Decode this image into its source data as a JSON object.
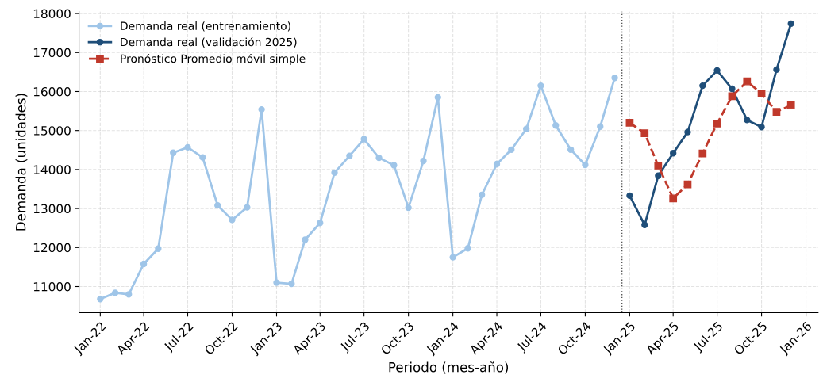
{
  "chart_data": {
    "type": "line",
    "xlabel": "Periodo (mes-año)",
    "ylabel": "Demanda (unidades)",
    "xlim": [
      "2021-11-18",
      "2026-01-26"
    ],
    "ylim": [
      10330,
      18050
    ],
    "xticks": [
      {
        "value": "2022-01-01",
        "label": "Jan-22"
      },
      {
        "value": "2022-04-01",
        "label": "Apr-22"
      },
      {
        "value": "2022-07-01",
        "label": "Jul-22"
      },
      {
        "value": "2022-10-01",
        "label": "Oct-22"
      },
      {
        "value": "2023-01-01",
        "label": "Jan-23"
      },
      {
        "value": "2023-04-01",
        "label": "Apr-23"
      },
      {
        "value": "2023-07-01",
        "label": "Jul-23"
      },
      {
        "value": "2023-10-01",
        "label": "Oct-23"
      },
      {
        "value": "2024-01-01",
        "label": "Jan-24"
      },
      {
        "value": "2024-04-01",
        "label": "Apr-24"
      },
      {
        "value": "2024-07-01",
        "label": "Jul-24"
      },
      {
        "value": "2024-10-01",
        "label": "Oct-24"
      },
      {
        "value": "2025-01-01",
        "label": "Jan-25"
      },
      {
        "value": "2025-04-01",
        "label": "Apr-25"
      },
      {
        "value": "2025-07-01",
        "label": "Jul-25"
      },
      {
        "value": "2025-10-01",
        "label": "Oct-25"
      },
      {
        "value": "2026-01-01",
        "label": "Jan-26"
      }
    ],
    "yticks": [
      11000,
      12000,
      13000,
      14000,
      15000,
      16000,
      17000,
      18000
    ],
    "grid": true,
    "legend": "top left",
    "ref_lines": [
      {
        "axis": "x",
        "value": "2024-12-16",
        "color": "#555555",
        "line_style": "dotted"
      }
    ],
    "series": [
      {
        "name": "Demanda real (entrenamiento)",
        "color": "#9fc5e8",
        "marker": "circle",
        "line_style": "solid",
        "x": [
          "2022-01",
          "2022-02",
          "2022-03",
          "2022-04",
          "2022-05",
          "2022-06",
          "2022-07",
          "2022-08",
          "2022-09",
          "2022-10",
          "2022-11",
          "2022-12",
          "2023-01",
          "2023-02",
          "2023-03",
          "2023-04",
          "2023-05",
          "2023-06",
          "2023-07",
          "2023-08",
          "2023-09",
          "2023-10",
          "2023-11",
          "2023-12",
          "2024-01",
          "2024-02",
          "2024-03",
          "2024-04",
          "2024-05",
          "2024-06",
          "2024-07",
          "2024-08",
          "2024-09",
          "2024-10",
          "2024-11",
          "2024-12"
        ],
        "values": [
          10680,
          10840,
          10800,
          11580,
          11970,
          14430,
          14570,
          14310,
          13080,
          12710,
          13030,
          15540,
          11100,
          11070,
          12200,
          12630,
          13920,
          14350,
          14780,
          14300,
          14110,
          13020,
          14220,
          15850,
          11750,
          11980,
          13350,
          14140,
          14510,
          15040,
          16150,
          15130,
          14510,
          14120,
          15100,
          16350
        ]
      },
      {
        "name": "Demanda real (validación 2025)",
        "color": "#1f4e79",
        "marker": "circle",
        "line_style": "solid",
        "x": [
          "2025-01",
          "2025-02",
          "2025-03",
          "2025-04",
          "2025-05",
          "2025-06",
          "2025-07",
          "2025-08",
          "2025-09",
          "2025-10",
          "2025-11",
          "2025-12"
        ],
        "values": [
          13330,
          12580,
          13840,
          14420,
          14960,
          16150,
          16540,
          16070,
          15270,
          15090,
          16560,
          17740
        ]
      },
      {
        "name": "Pronóstico Promedio móvil simple",
        "color": "#c0392b",
        "marker": "square",
        "line_style": "dashed",
        "x": [
          "2025-01",
          "2025-02",
          "2025-03",
          "2025-04",
          "2025-05",
          "2025-06",
          "2025-07",
          "2025-08",
          "2025-09",
          "2025-10",
          "2025-11",
          "2025-12"
        ],
        "values": [
          15200,
          14930,
          14100,
          13260,
          13620,
          14410,
          15180,
          15880,
          16260,
          15950,
          15480,
          15650
        ]
      }
    ]
  }
}
